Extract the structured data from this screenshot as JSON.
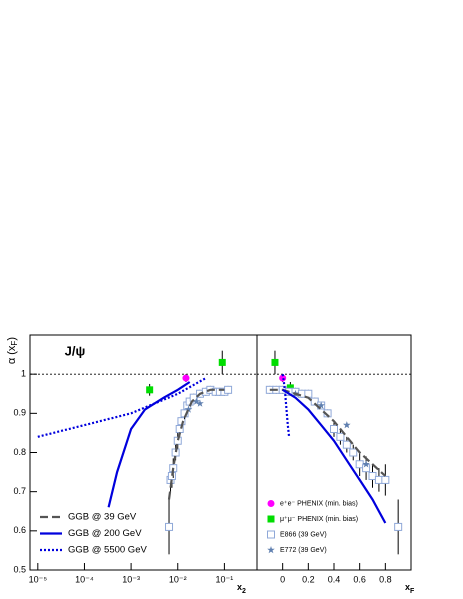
{
  "chart_data": [
    {
      "type": "scatter",
      "title": "J/ψ",
      "ylabel": [
        "α (x",
        "F",
        ")"
      ],
      "xlabel": [
        "x",
        "2"
      ],
      "xscale": "log",
      "xlim": [
        6.8e-06,
        0.5
      ],
      "xticks": [
        {
          "value": 1e-05,
          "label": "10⁻⁵"
        },
        {
          "value": 0.0001,
          "label": "10⁻⁴"
        },
        {
          "value": 0.001,
          "label": "10⁻³"
        },
        {
          "value": 0.01,
          "label": "10⁻²"
        },
        {
          "value": 0.1,
          "label": "10⁻¹"
        }
      ],
      "ylim": [
        0.5,
        1.1
      ],
      "yticks": [
        0.5,
        0.6,
        0.7,
        0.8,
        0.9,
        1
      ],
      "hline": 1,
      "legend": "lower left",
      "series": [
        {
          "marker": "circle",
          "color": "#ff00ff",
          "x": [
            0.015
          ],
          "values": [
            0.99
          ],
          "errors": [
            0.01
          ]
        },
        {
          "marker": "square",
          "color": "#00dd00",
          "x": [
            0.0025,
            0.09
          ],
          "values": [
            0.96,
            1.03
          ],
          "errors": [
            0.015,
            0.03
          ]
        },
        {
          "marker": "open-square",
          "color": "#8fa8d8",
          "x": [
            0.0065,
            0.007,
            0.0075,
            0.008,
            0.009,
            0.01,
            0.011,
            0.012,
            0.014,
            0.016,
            0.018,
            0.022,
            0.03,
            0.04,
            0.05,
            0.065,
            0.08,
            0.1,
            0.12
          ],
          "values": [
            0.61,
            0.73,
            0.74,
            0.76,
            0.8,
            0.83,
            0.86,
            0.88,
            0.9,
            0.92,
            0.93,
            0.94,
            0.95,
            0.955,
            0.96,
            0.955,
            0.955,
            0.955,
            0.96
          ],
          "errors": [
            0.07,
            0.03,
            0.03,
            0.025,
            0.02,
            0.02,
            0.02,
            0.015,
            0.015,
            0.01,
            0.01,
            0.01,
            0.01,
            0.01,
            0.01,
            0.01,
            0.01,
            0.01,
            0.01
          ]
        },
        {
          "marker": "star",
          "color": "#6080b0",
          "x": [
            0.017,
            0.025,
            0.03
          ],
          "values": [
            0.91,
            0.93,
            0.925
          ]
        },
        {
          "name": "GGB @ 39 GeV",
          "marker": "line",
          "dash": "dashed",
          "color": "#555555",
          "x": [
            0.0065,
            0.008,
            0.01,
            0.013,
            0.02,
            0.03,
            0.05,
            0.1
          ],
          "values": [
            0.68,
            0.76,
            0.83,
            0.88,
            0.93,
            0.95,
            0.96,
            0.96
          ]
        },
        {
          "name": "GGB @ 200 GeV",
          "marker": "line",
          "dash": "solid",
          "color": "#0000dd",
          "x": [
            0.00033,
            0.0005,
            0.001,
            0.002,
            0.005,
            0.01,
            0.018
          ],
          "values": [
            0.66,
            0.75,
            0.86,
            0.91,
            0.94,
            0.96,
            0.98
          ]
        },
        {
          "name": "GGB @ 5500 GeV",
          "marker": "line",
          "dash": "dotted",
          "color": "#0000dd",
          "x": [
            1e-05,
            0.0001,
            0.001,
            0.01,
            0.04
          ],
          "values": [
            0.84,
            0.87,
            0.9,
            0.95,
            0.99
          ]
        }
      ]
    },
    {
      "type": "scatter",
      "xlabel": [
        "x",
        "F"
      ],
      "xscale": "linear",
      "xlim": [
        -0.2,
        1.0
      ],
      "xticks": [
        0,
        0.2,
        0.4,
        0.6,
        0.8
      ],
      "ylim": [
        0.5,
        1.1
      ],
      "hline": 1,
      "legend": "lower left",
      "series": [
        {
          "name": "e⁺e⁻ PHENIX (min. bias)",
          "marker": "circle",
          "color": "#ff00ff",
          "x": [
            0
          ],
          "values": [
            0.99
          ],
          "errors": [
            0.01
          ]
        },
        {
          "name": "μ⁺μ⁻ PHENIX (min. bias)",
          "marker": "square",
          "color": "#00dd00",
          "x": [
            -0.06,
            0.06
          ],
          "values": [
            1.03,
            0.965
          ],
          "errors": [
            0.03,
            0.015
          ]
        },
        {
          "name": "E866 (39 GeV)",
          "marker": "open-square",
          "color": "#8fa8d8",
          "x": [
            -0.1,
            -0.05,
            0,
            0.05,
            0.1,
            0.15,
            0.2,
            0.25,
            0.3,
            0.35,
            0.4,
            0.45,
            0.5,
            0.55,
            0.6,
            0.65,
            0.7,
            0.75,
            0.8,
            0.9
          ],
          "values": [
            0.96,
            0.96,
            0.96,
            0.955,
            0.955,
            0.95,
            0.95,
            0.93,
            0.92,
            0.9,
            0.86,
            0.84,
            0.82,
            0.8,
            0.77,
            0.76,
            0.74,
            0.73,
            0.73,
            0.61
          ],
          "errors": [
            0.01,
            0.01,
            0.01,
            0.01,
            0.01,
            0.01,
            0.01,
            0.01,
            0.01,
            0.01,
            0.02,
            0.02,
            0.02,
            0.02,
            0.03,
            0.03,
            0.03,
            0.03,
            0.04,
            0.07
          ]
        },
        {
          "name": "E772 (39 GeV)",
          "marker": "star",
          "color": "#6080b0",
          "x": [
            0.1,
            0.3,
            0.5,
            0.65
          ],
          "values": [
            0.95,
            0.92,
            0.87,
            0.77
          ]
        },
        {
          "marker": "line",
          "dash": "dashed",
          "color": "#555555",
          "x": [
            -0.1,
            0,
            0.2,
            0.4,
            0.6,
            0.8
          ],
          "values": [
            0.96,
            0.96,
            0.94,
            0.88,
            0.8,
            0.74
          ]
        },
        {
          "marker": "line",
          "dash": "solid",
          "color": "#0000dd",
          "x": [
            0,
            0.1,
            0.2,
            0.3,
            0.4,
            0.5,
            0.6,
            0.7,
            0.8
          ],
          "values": [
            0.96,
            0.94,
            0.91,
            0.87,
            0.83,
            0.78,
            0.73,
            0.68,
            0.62
          ]
        },
        {
          "marker": "line",
          "dash": "dotted",
          "color": "#0000dd",
          "x": [
            0,
            0.01,
            0.02,
            0.03,
            0.04,
            0.05
          ],
          "values": [
            1.0,
            0.98,
            0.95,
            0.91,
            0.87,
            0.84
          ]
        }
      ]
    }
  ]
}
